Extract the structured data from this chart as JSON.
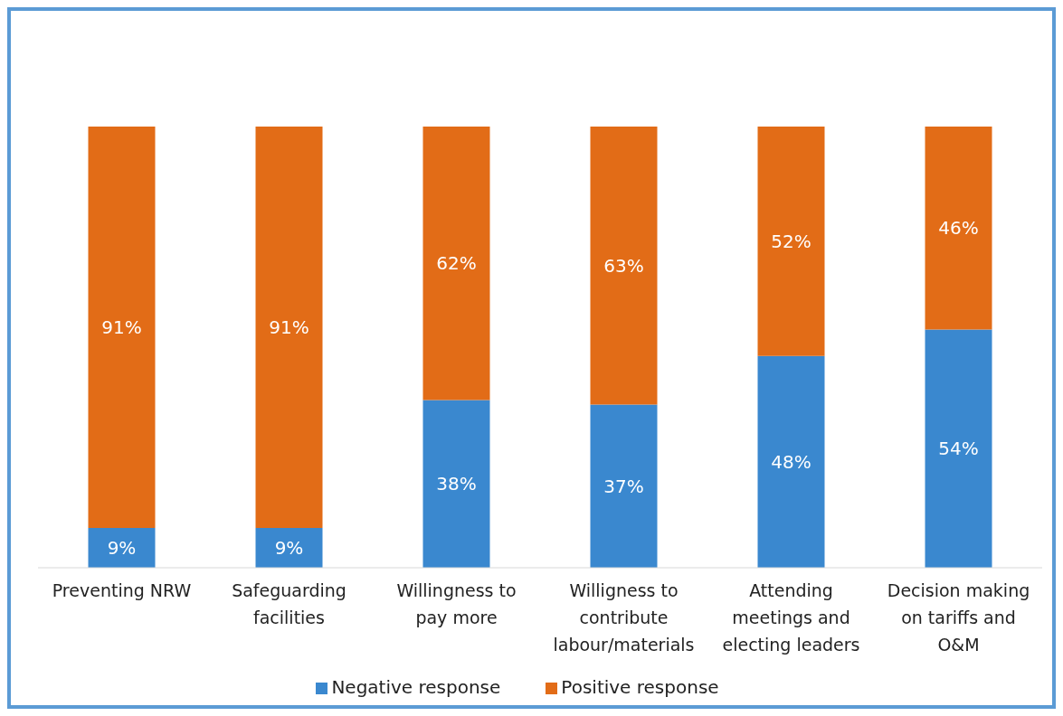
{
  "chart_data": {
    "type": "bar",
    "stacked": true,
    "categories": [
      "Preventing NRW",
      "Safeguarding facilities",
      "Willingness to pay more",
      "Willigness to contribute labour/materials",
      "Attending meetings and electing leaders",
      "Decision making on tariffs and O&M"
    ],
    "series": [
      {
        "name": "Negative response",
        "color": "#3a88cf",
        "values": [
          9,
          9,
          38,
          37,
          48,
          54
        ],
        "value_labels": [
          "9%",
          "9%",
          "38%",
          "37%",
          "48%",
          "54%"
        ]
      },
      {
        "name": "Positive response",
        "color": "#e26c17",
        "values": [
          91,
          91,
          62,
          63,
          52,
          46
        ],
        "value_labels": [
          "91%",
          "91%",
          "62%",
          "63%",
          "52%",
          "46%"
        ]
      }
    ],
    "legend": "bottom",
    "tick_labels": "x"
  }
}
